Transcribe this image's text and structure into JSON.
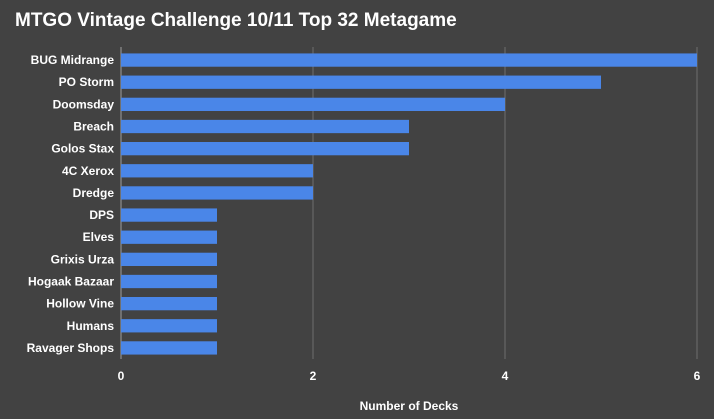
{
  "chart_data": {
    "type": "bar",
    "orientation": "horizontal",
    "title": "MTGO Vintage Challenge 10/11 Top 32 Metagame",
    "xlabel": "Number of Decks",
    "ylabel": "",
    "categories": [
      "BUG Midrange",
      "PO Storm",
      "Doomsday",
      "Breach",
      "Golos Stax",
      "4C Xerox",
      "Dredge",
      "DPS",
      "Elves",
      "Grixis Urza",
      "Hogaak Bazaar",
      "Hollow Vine",
      "Humans",
      "Ravager Shops"
    ],
    "values": [
      6,
      5,
      4,
      3,
      3,
      2,
      2,
      1,
      1,
      1,
      1,
      1,
      1,
      1
    ],
    "xlim": [
      0,
      6
    ],
    "xticks": [
      "0",
      "2",
      "4",
      "6"
    ],
    "grid": "vertical",
    "legend": "none",
    "colors": {
      "background": "#424242",
      "bar": "#4a86e8",
      "grid": "#6e6e6e",
      "text": "#ffffff"
    }
  }
}
